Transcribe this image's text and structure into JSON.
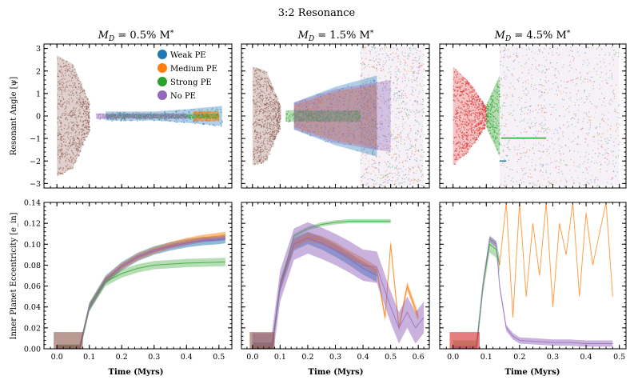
{
  "suptitle": "3:2 Resonance",
  "legend": {
    "placement": "upper-right of first panel",
    "entries": [
      {
        "label": "Weak PE",
        "color": "#1f77b4"
      },
      {
        "label": "Medium PE",
        "color": "#ff7f0e"
      },
      {
        "label": "Strong PE",
        "color": "#2ca02c"
      },
      {
        "label": "No PE",
        "color": "#9467bd"
      }
    ]
  },
  "colors": {
    "early_phase": "#d62728",
    "mixed": "#8c564b"
  },
  "chart_data": [
    {
      "type": "scatter",
      "title": "M_D = 0.5% M_*",
      "title_parts": [
        "M",
        "D",
        " = 0.5% M",
        "*"
      ],
      "xlabel": "",
      "ylabel": "Resonant Angle [ψ]",
      "xlim": [
        -0.04,
        0.54
      ],
      "ylim": [
        -3.2,
        3.2
      ],
      "xticks": [
        0.0,
        0.1,
        0.2,
        0.3,
        0.4,
        0.5
      ],
      "yticks": [
        -3,
        -2,
        -1,
        0,
        1,
        2,
        3
      ],
      "xtick_labels": [],
      "ytick_labels": [
        "−3",
        "−2",
        "−1",
        "0",
        "1",
        "2",
        "3"
      ],
      "series": [
        {
          "name": "early scatter",
          "color": "#8c564b",
          "x": [
            0.0,
            0.05,
            0.1
          ],
          "half_width": [
            2.7,
            2.3,
            0.6
          ]
        },
        {
          "name": "Weak PE",
          "color": "#1f77b4",
          "x": [
            0.15,
            0.3,
            0.4,
            0.51
          ],
          "half_width": [
            0.2,
            0.2,
            0.3,
            0.45
          ]
        },
        {
          "name": "Medium PE",
          "color": "#ff7f0e",
          "x": [
            0.42,
            0.5
          ],
          "half_width": [
            0.22,
            0.22
          ]
        },
        {
          "name": "Strong PE",
          "color": "#2ca02c",
          "x": [
            0.15,
            0.5
          ],
          "half_width": [
            0.1,
            0.1
          ]
        },
        {
          "name": "No PE",
          "color": "#9467bd",
          "x": [
            0.12,
            0.4
          ],
          "half_width": [
            0.12,
            0.12
          ]
        }
      ]
    },
    {
      "type": "scatter",
      "title": "M_D = 1.5% M_*",
      "title_parts": [
        "M",
        "D",
        " = 1.5% M",
        "*"
      ],
      "xlabel": "",
      "ylabel": "",
      "xlim": [
        -0.04,
        0.64
      ],
      "ylim": [
        -3.2,
        3.2
      ],
      "xticks": [
        0.0,
        0.1,
        0.2,
        0.3,
        0.4,
        0.5,
        0.6
      ],
      "yticks": [
        -3,
        -2,
        -1,
        0,
        1,
        2,
        3
      ],
      "xtick_labels": [],
      "ytick_labels": [],
      "series": [
        {
          "name": "early scatter",
          "color": "#8c564b",
          "x": [
            0.0,
            0.05,
            0.1
          ],
          "half_width": [
            2.2,
            2.0,
            0.5
          ]
        },
        {
          "name": "Weak PE",
          "color": "#1f77b4",
          "x": [
            0.15,
            0.3,
            0.45
          ],
          "half_width": [
            0.6,
            1.3,
            1.8
          ]
        },
        {
          "name": "Medium PE",
          "color": "#ff7f0e",
          "x": [
            0.15,
            0.3,
            0.45
          ],
          "half_width": [
            0.5,
            1.1,
            1.4
          ]
        },
        {
          "name": "Strong PE",
          "color": "#2ca02c",
          "x": [
            0.12,
            0.39
          ],
          "half_width": [
            0.25,
            0.25
          ]
        },
        {
          "name": "No PE",
          "color": "#9467bd",
          "x": [
            0.15,
            0.3,
            0.5
          ],
          "half_width": [
            0.6,
            1.2,
            1.6
          ]
        }
      ],
      "chaotic_region": {
        "x_start": 0.39,
        "x_end": 0.62,
        "range": [
          -3.1,
          3.1
        ]
      }
    },
    {
      "type": "scatter",
      "title": "M_D = 4.5% M_*",
      "title_parts": [
        "M",
        "D",
        " = 4.5% M",
        "*"
      ],
      "xlabel": "",
      "ylabel": "",
      "xlim": [
        -0.04,
        0.52
      ],
      "ylim": [
        -3.2,
        3.2
      ],
      "xticks": [
        0.0,
        0.1,
        0.2,
        0.3,
        0.4,
        0.5
      ],
      "yticks": [
        -3,
        -2,
        -1,
        0,
        1,
        2,
        3
      ],
      "xtick_labels": [],
      "ytick_labels": [],
      "series": [
        {
          "name": "early scatter",
          "color": "#d62728",
          "x": [
            0.0,
            0.05,
            0.1
          ],
          "half_width": [
            2.2,
            1.5,
            0.4
          ]
        },
        {
          "name": "Strong PE",
          "color": "#2ca02c",
          "x": [
            0.1,
            0.14
          ],
          "half_width": [
            0.5,
            1.8
          ]
        }
      ],
      "chaotic_region": {
        "x_start": 0.14,
        "x_end": 0.5,
        "range": [
          -3.1,
          3.1
        ]
      },
      "lines": [
        {
          "name": "Strong PE level",
          "color": "#2ca02c",
          "x": [
            0.145,
            0.28
          ],
          "y": [
            -0.98,
            -0.98
          ]
        },
        {
          "name": "Weak PE level",
          "color": "#1f77b4",
          "x": [
            0.14,
            0.16
          ],
          "y": [
            -2.0,
            -2.0
          ]
        }
      ]
    },
    {
      "type": "line",
      "title": "",
      "xlabel": "Time (Myrs)",
      "ylabel": "Inner Planet Eccentricity [e_in]",
      "xlim": [
        -0.04,
        0.54
      ],
      "ylim": [
        0.0,
        0.14
      ],
      "xticks": [
        0.0,
        0.1,
        0.2,
        0.3,
        0.4,
        0.5
      ],
      "yticks": [
        0.0,
        0.02,
        0.04,
        0.06,
        0.08,
        0.1,
        0.12,
        0.14
      ],
      "xtick_labels": [
        "0.0",
        "0.1",
        "0.2",
        "0.3",
        "0.4",
        "0.5"
      ],
      "ytick_labels": [
        "0.00",
        "0.02",
        "0.04",
        "0.06",
        "0.08",
        "0.10",
        "0.12",
        "0.14"
      ],
      "series": [
        {
          "name": "Weak PE",
          "color": "#1f77b4",
          "x": [
            0.0,
            0.07,
            0.1,
            0.15,
            0.2,
            0.25,
            0.3,
            0.35,
            0.4,
            0.45,
            0.5,
            0.52
          ],
          "y": [
            0.0,
            0.0,
            0.04,
            0.066,
            0.079,
            0.088,
            0.094,
            0.098,
            0.101,
            0.103,
            0.104,
            0.105
          ],
          "band": 0.004
        },
        {
          "name": "Medium PE",
          "color": "#ff7f0e",
          "x": [
            0.0,
            0.07,
            0.1,
            0.15,
            0.2,
            0.25,
            0.3,
            0.35,
            0.4,
            0.45,
            0.5,
            0.52
          ],
          "y": [
            0.0,
            0.0,
            0.04,
            0.066,
            0.079,
            0.088,
            0.094,
            0.099,
            0.103,
            0.106,
            0.108,
            0.109
          ],
          "band": 0.003
        },
        {
          "name": "Strong PE",
          "color": "#2ca02c",
          "x": [
            0.0,
            0.07,
            0.1,
            0.15,
            0.2,
            0.25,
            0.3,
            0.4,
            0.52
          ],
          "y": [
            0.0,
            0.0,
            0.04,
            0.064,
            0.072,
            0.077,
            0.08,
            0.082,
            0.083
          ],
          "band": 0.004
        },
        {
          "name": "No PE",
          "color": "#9467bd",
          "x": [
            0.0,
            0.07,
            0.1,
            0.15,
            0.2,
            0.25,
            0.3,
            0.35,
            0.4,
            0.45,
            0.5,
            0.52
          ],
          "y": [
            0.0,
            0.0,
            0.04,
            0.066,
            0.079,
            0.088,
            0.094,
            0.098,
            0.101,
            0.104,
            0.105,
            0.106
          ],
          "band": 0.002
        }
      ],
      "initial_block": {
        "x": [
          -0.01,
          0.08
        ],
        "y": [
          0.0,
          0.016
        ],
        "color": "#8c564b"
      }
    },
    {
      "type": "line",
      "title": "",
      "xlabel": "Time (Myrs)",
      "ylabel": "",
      "xlim": [
        -0.04,
        0.64
      ],
      "ylim": [
        0.0,
        0.14
      ],
      "xticks": [
        0.0,
        0.1,
        0.2,
        0.3,
        0.4,
        0.5,
        0.6
      ],
      "yticks": [
        0.0,
        0.02,
        0.04,
        0.06,
        0.08,
        0.1,
        0.12,
        0.14
      ],
      "xtick_labels": [
        "0.0",
        "0.1",
        "0.2",
        "0.3",
        "0.4",
        "0.5",
        "0.6"
      ],
      "ytick_labels": [],
      "series": [
        {
          "name": "Weak PE",
          "color": "#1f77b4",
          "x": [
            0.0,
            0.07,
            0.1,
            0.15,
            0.2,
            0.25,
            0.3,
            0.35,
            0.4,
            0.45
          ],
          "y": [
            0.0,
            0.0,
            0.06,
            0.1,
            0.106,
            0.101,
            0.094,
            0.086,
            0.077,
            0.07
          ],
          "band": 0.006
        },
        {
          "name": "Medium PE",
          "color": "#ff7f0e",
          "x": [
            0.0,
            0.07,
            0.1,
            0.15,
            0.2,
            0.25,
            0.3,
            0.35,
            0.4,
            0.45,
            0.48,
            0.5,
            0.53,
            0.56,
            0.6
          ],
          "y": [
            0.0,
            0.0,
            0.06,
            0.1,
            0.107,
            0.104,
            0.098,
            0.09,
            0.083,
            0.075,
            0.03,
            0.1,
            0.02,
            0.06,
            0.03
          ],
          "band": 0.004
        },
        {
          "name": "Strong PE",
          "color": "#2ca02c",
          "x": [
            0.0,
            0.07,
            0.1,
            0.15,
            0.2,
            0.25,
            0.3,
            0.35,
            0.4,
            0.5
          ],
          "y": [
            0.0,
            0.0,
            0.06,
            0.108,
            0.115,
            0.119,
            0.121,
            0.122,
            0.122,
            0.122
          ],
          "band": 0.002
        },
        {
          "name": "No PE",
          "color": "#9467bd",
          "x": [
            0.0,
            0.07,
            0.1,
            0.15,
            0.2,
            0.25,
            0.3,
            0.35,
            0.4,
            0.45,
            0.5,
            0.53,
            0.56,
            0.59,
            0.62
          ],
          "y": [
            0.0,
            0.0,
            0.06,
            0.1,
            0.106,
            0.101,
            0.095,
            0.088,
            0.08,
            0.078,
            0.04,
            0.02,
            0.035,
            0.02,
            0.03
          ],
          "band": 0.015
        }
      ],
      "initial_block": {
        "x": [
          -0.01,
          0.08
        ],
        "y": [
          0.0,
          0.016
        ],
        "color": "#8c564b"
      }
    },
    {
      "type": "line",
      "title": "",
      "xlabel": "Time (Myrs)",
      "ylabel": "",
      "xlim": [
        -0.04,
        0.52
      ],
      "ylim": [
        0.0,
        0.14
      ],
      "xticks": [
        0.0,
        0.1,
        0.2,
        0.3,
        0.4,
        0.5
      ],
      "yticks": [
        0.0,
        0.02,
        0.04,
        0.06,
        0.08,
        0.1,
        0.12,
        0.14
      ],
      "xtick_labels": [
        "0.0",
        "0.1",
        "0.2",
        "0.3",
        "0.4",
        "0.5"
      ],
      "ytick_labels": [],
      "series": [
        {
          "name": "Strong PE",
          "color": "#2ca02c",
          "x": [
            0.0,
            0.07,
            0.09,
            0.11,
            0.13,
            0.14
          ],
          "y": [
            0.0,
            0.0,
            0.06,
            0.1,
            0.095,
            0.08
          ],
          "band": 0.008
        },
        {
          "name": "Medium PE",
          "color": "#ff7f0e",
          "x": [
            0.14,
            0.16,
            0.18,
            0.2,
            0.22,
            0.24,
            0.26,
            0.28,
            0.3,
            0.32,
            0.34,
            0.36,
            0.38,
            0.4,
            0.42,
            0.44,
            0.46,
            0.48
          ],
          "y": [
            0.08,
            0.14,
            0.03,
            0.14,
            0.05,
            0.12,
            0.07,
            0.14,
            0.04,
            0.12,
            0.09,
            0.14,
            0.05,
            0.13,
            0.08,
            0.11,
            0.14,
            0.05
          ],
          "band": 0.0
        },
        {
          "name": "No PE",
          "color": "#9467bd",
          "x": [
            0.0,
            0.07,
            0.09,
            0.11,
            0.13,
            0.14,
            0.16,
            0.18,
            0.2,
            0.25,
            0.3,
            0.35,
            0.4,
            0.45,
            0.48
          ],
          "y": [
            0.0,
            0.0,
            0.06,
            0.105,
            0.1,
            0.06,
            0.02,
            0.012,
            0.008,
            0.007,
            0.006,
            0.006,
            0.005,
            0.005,
            0.005
          ],
          "band": 0.003
        }
      ],
      "initial_block": {
        "x": [
          -0.01,
          0.08
        ],
        "y": [
          0.0,
          0.016
        ],
        "color": "#d62728"
      }
    }
  ]
}
